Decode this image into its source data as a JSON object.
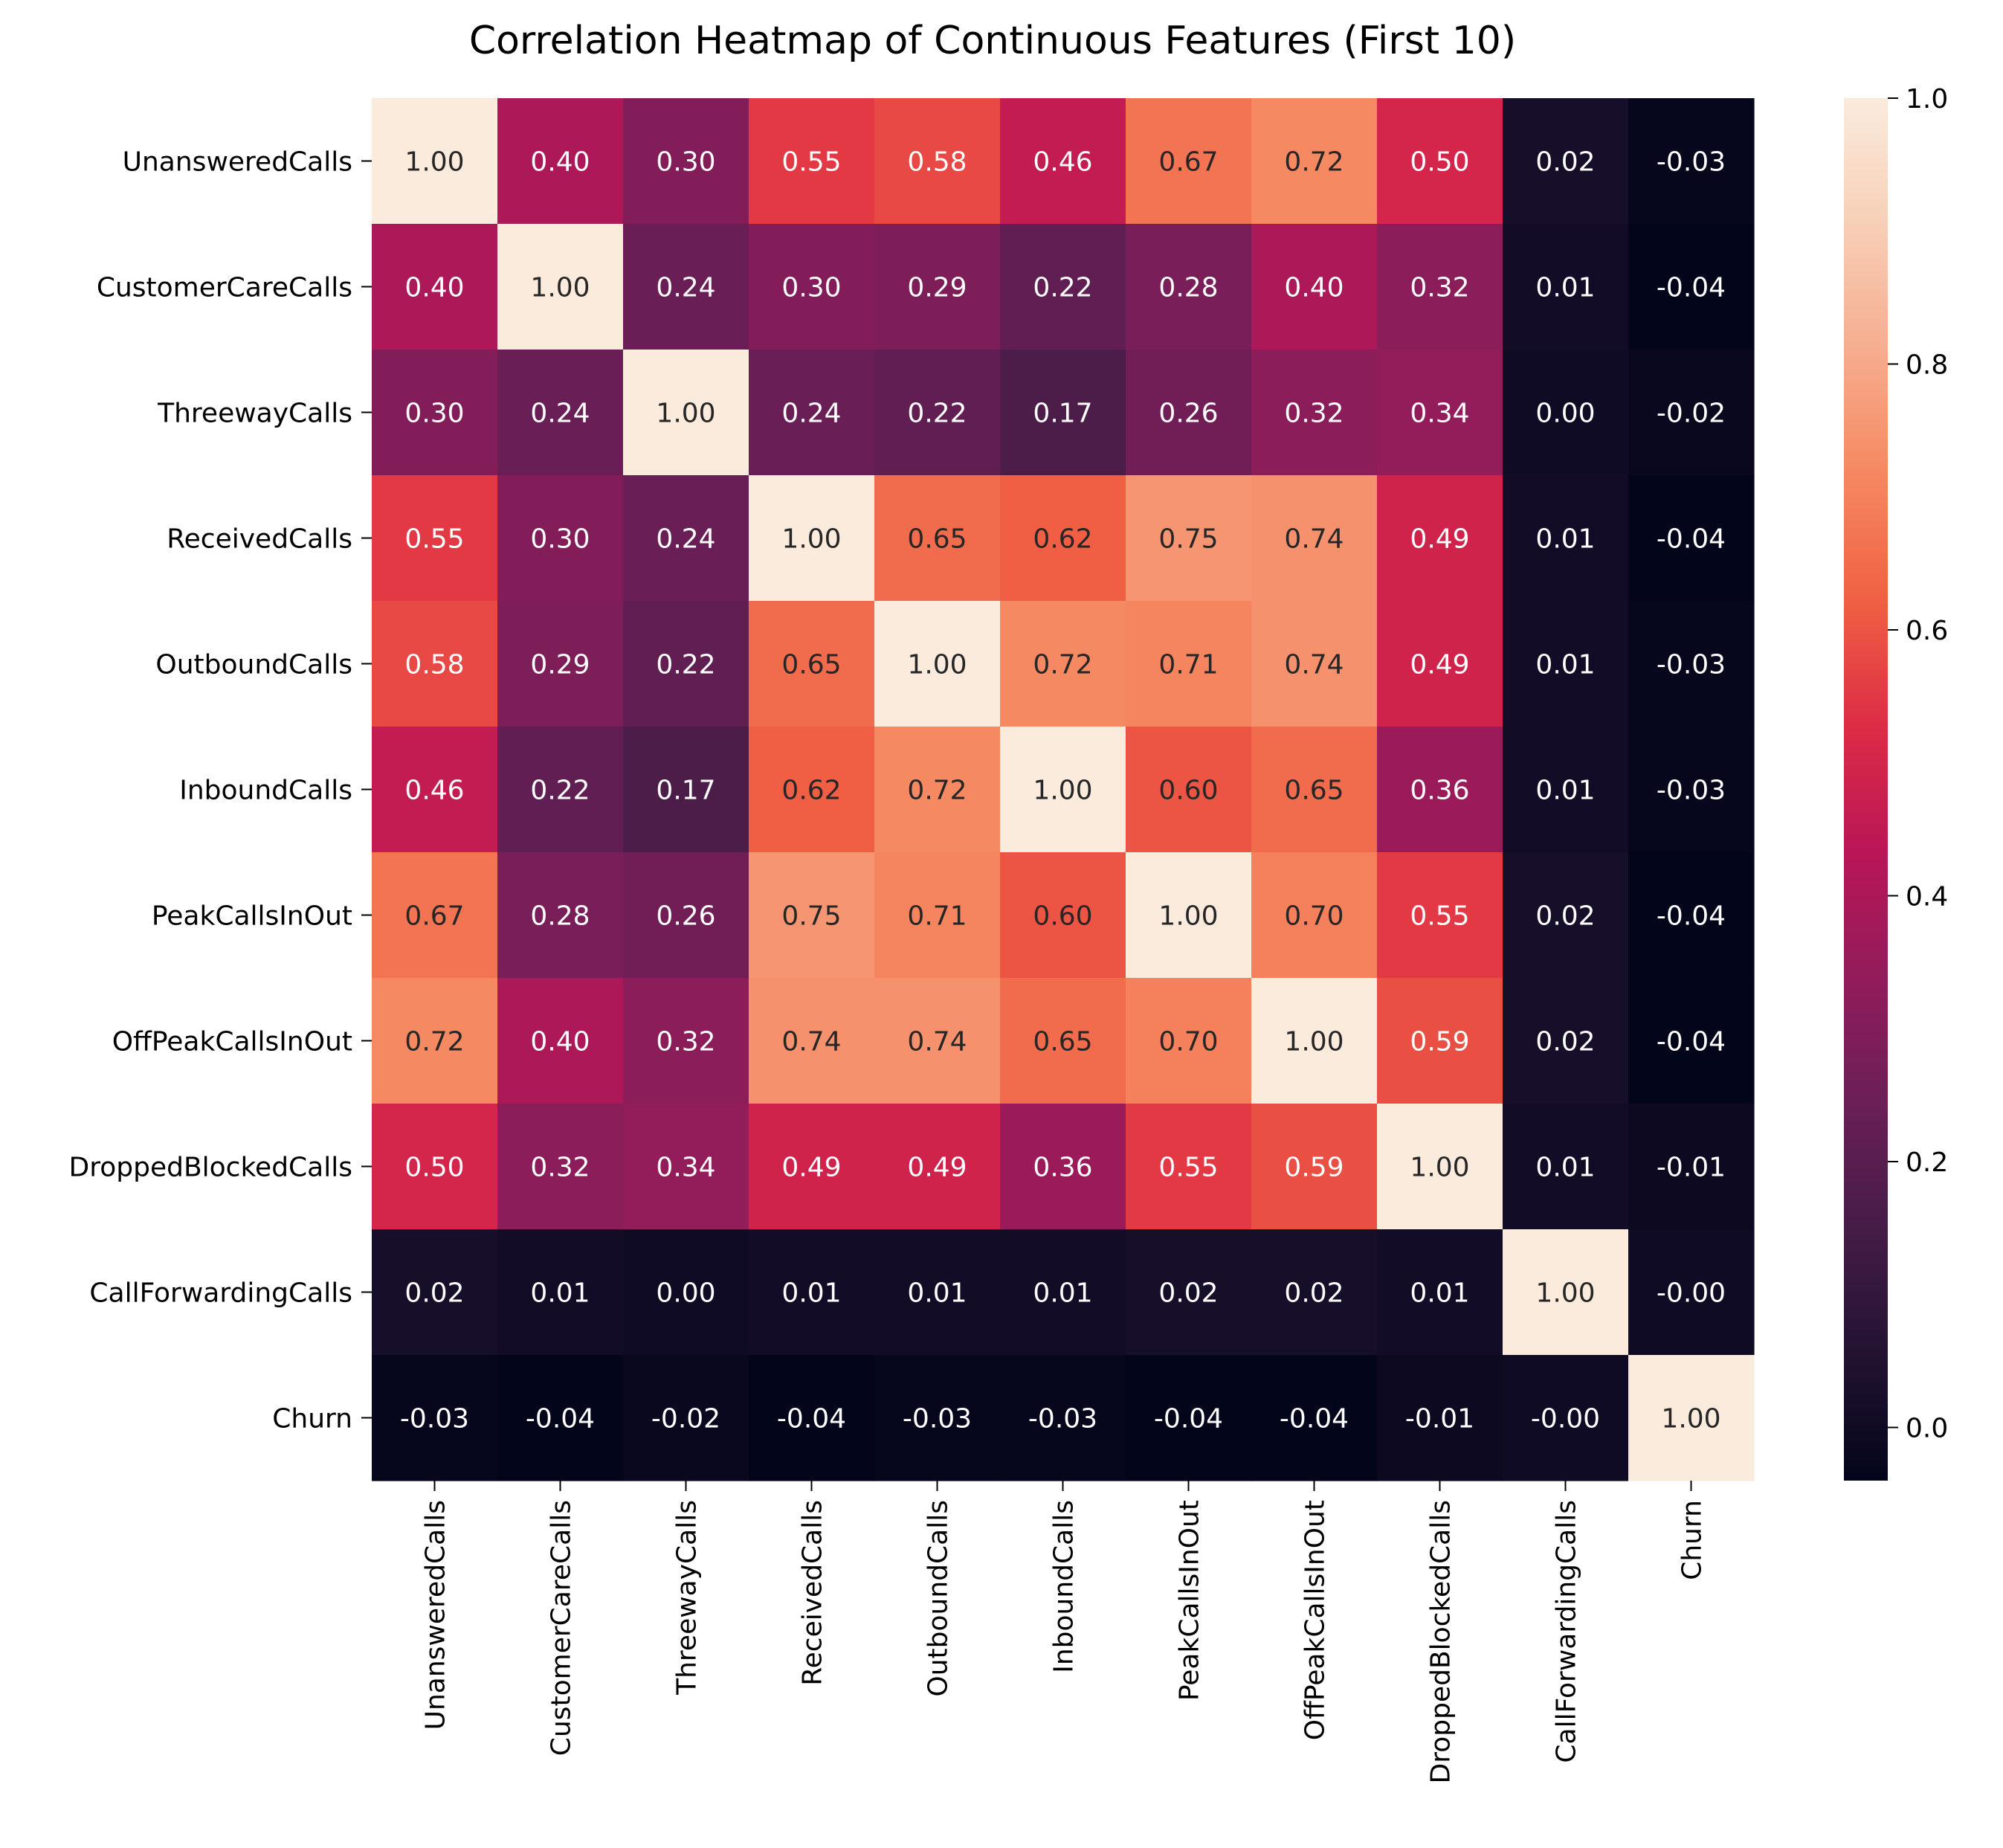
{
  "chart_data": {
    "type": "heatmap",
    "title": "Correlation Heatmap of Continuous Features (First 10)",
    "xlabel": "",
    "ylabel": "",
    "categories": [
      "UnansweredCalls",
      "CustomerCareCalls",
      "ThreewayCalls",
      "ReceivedCalls",
      "OutboundCalls",
      "InboundCalls",
      "PeakCallsInOut",
      "OffPeakCallsInOut",
      "DroppedBlockedCalls",
      "CallForwardingCalls",
      "Churn"
    ],
    "matrix": [
      [
        1.0,
        0.4,
        0.3,
        0.55,
        0.58,
        0.46,
        0.67,
        0.72,
        0.5,
        0.02,
        -0.03
      ],
      [
        0.4,
        1.0,
        0.24,
        0.3,
        0.29,
        0.22,
        0.28,
        0.4,
        0.32,
        0.01,
        -0.04
      ],
      [
        0.3,
        0.24,
        1.0,
        0.24,
        0.22,
        0.17,
        0.26,
        0.32,
        0.34,
        0.0,
        -0.02
      ],
      [
        0.55,
        0.3,
        0.24,
        1.0,
        0.65,
        0.62,
        0.75,
        0.74,
        0.49,
        0.01,
        -0.04
      ],
      [
        0.58,
        0.29,
        0.22,
        0.65,
        1.0,
        0.72,
        0.71,
        0.74,
        0.49,
        0.01,
        -0.03
      ],
      [
        0.46,
        0.22,
        0.17,
        0.62,
        0.72,
        1.0,
        0.6,
        0.65,
        0.36,
        0.01,
        -0.03
      ],
      [
        0.67,
        0.28,
        0.26,
        0.75,
        0.71,
        0.6,
        1.0,
        0.7,
        0.55,
        0.02,
        -0.04
      ],
      [
        0.72,
        0.4,
        0.32,
        0.74,
        0.74,
        0.65,
        0.7,
        1.0,
        0.59,
        0.02,
        -0.04
      ],
      [
        0.5,
        0.32,
        0.34,
        0.49,
        0.49,
        0.36,
        0.55,
        0.59,
        1.0,
        0.01,
        -0.01
      ],
      [
        0.02,
        0.01,
        0.0,
        0.01,
        0.01,
        0.01,
        0.02,
        0.02,
        0.01,
        1.0,
        -0.0
      ],
      [
        -0.03,
        -0.04,
        -0.02,
        -0.04,
        -0.03,
        -0.03,
        -0.04,
        -0.04,
        -0.01,
        -0.0,
        1.0
      ]
    ],
    "colorbar": {
      "vmin": -0.04,
      "vmax": 1.0,
      "ticks": [
        0.0,
        0.2,
        0.4,
        0.6,
        0.8,
        1.0
      ],
      "tick_labels": [
        "0.0",
        "0.2",
        "0.4",
        "0.6",
        "0.8",
        "1.0"
      ],
      "colormap": "rocket",
      "colormap_stops": [
        "#03051a",
        "#221331",
        "#451c47",
        "#6a1f56",
        "#921c5b",
        "#b91657",
        "#dd2c45",
        "#f06043",
        "#f58860",
        "#f6ad8f",
        "#f7cfb6",
        "#faebdd"
      ]
    },
    "annotation_format": "2 decimals",
    "grid": false
  }
}
